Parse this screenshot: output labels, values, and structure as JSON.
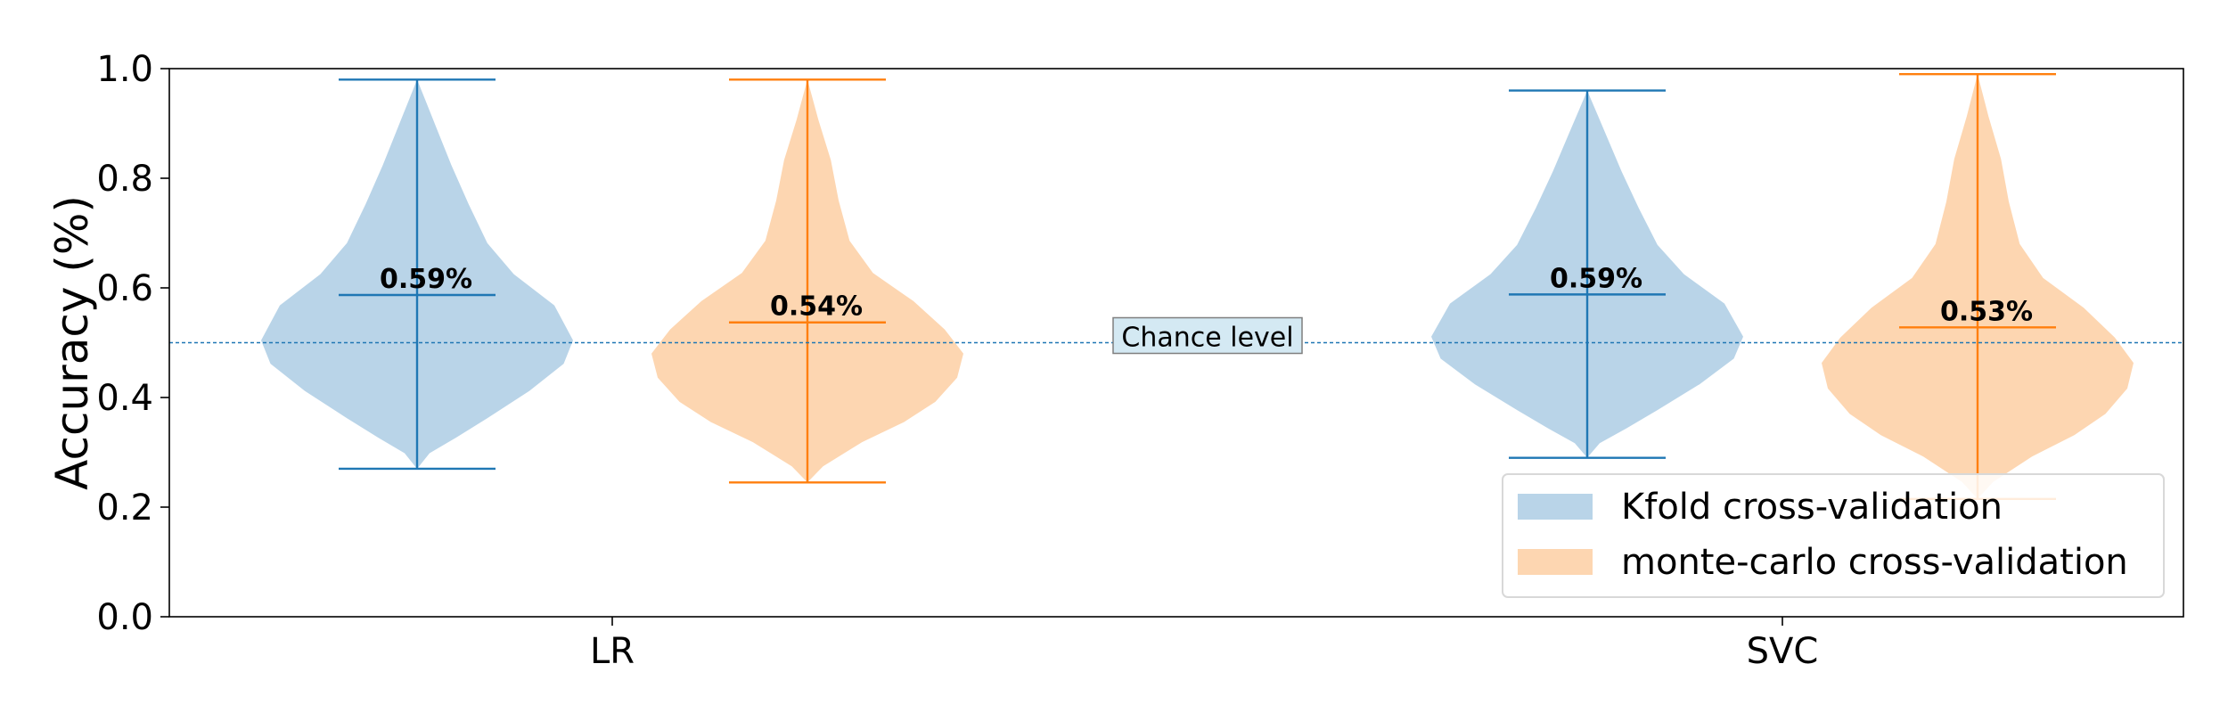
{
  "chart_data": {
    "type": "violin",
    "ylabel": "Accuracy (%)",
    "xlabel": "",
    "ylim": [
      0.0,
      1.0
    ],
    "yticks": [
      "0.0",
      "0.2",
      "0.4",
      "0.6",
      "0.8",
      "1.0"
    ],
    "categories": [
      "LR",
      "SVC"
    ],
    "series": [
      {
        "name": "Kfold cross-validation",
        "color": "#1f77b4",
        "fill": "#b9d4e8",
        "groups": [
          {
            "category": "LR",
            "min": 0.27,
            "max": 0.98,
            "mean": 0.587,
            "label": "0.59%"
          },
          {
            "category": "SVC",
            "min": 0.29,
            "max": 0.96,
            "mean": 0.588,
            "label": "0.59%"
          }
        ]
      },
      {
        "name": "monte-carlo cross-validation",
        "color": "#ff7f0e",
        "fill": "#fdd6b1",
        "groups": [
          {
            "category": "LR",
            "min": 0.245,
            "max": 0.98,
            "mean": 0.537,
            "label": "0.54%"
          },
          {
            "category": "SVC",
            "min": 0.215,
            "max": 0.99,
            "mean": 0.528,
            "label": "0.53%"
          }
        ]
      }
    ],
    "reference_line": {
      "y": 0.5,
      "label": "Chance level",
      "color": "#1f77b4",
      "style": "dotted"
    },
    "legend": {
      "position": "lower-right"
    },
    "grid": false
  }
}
